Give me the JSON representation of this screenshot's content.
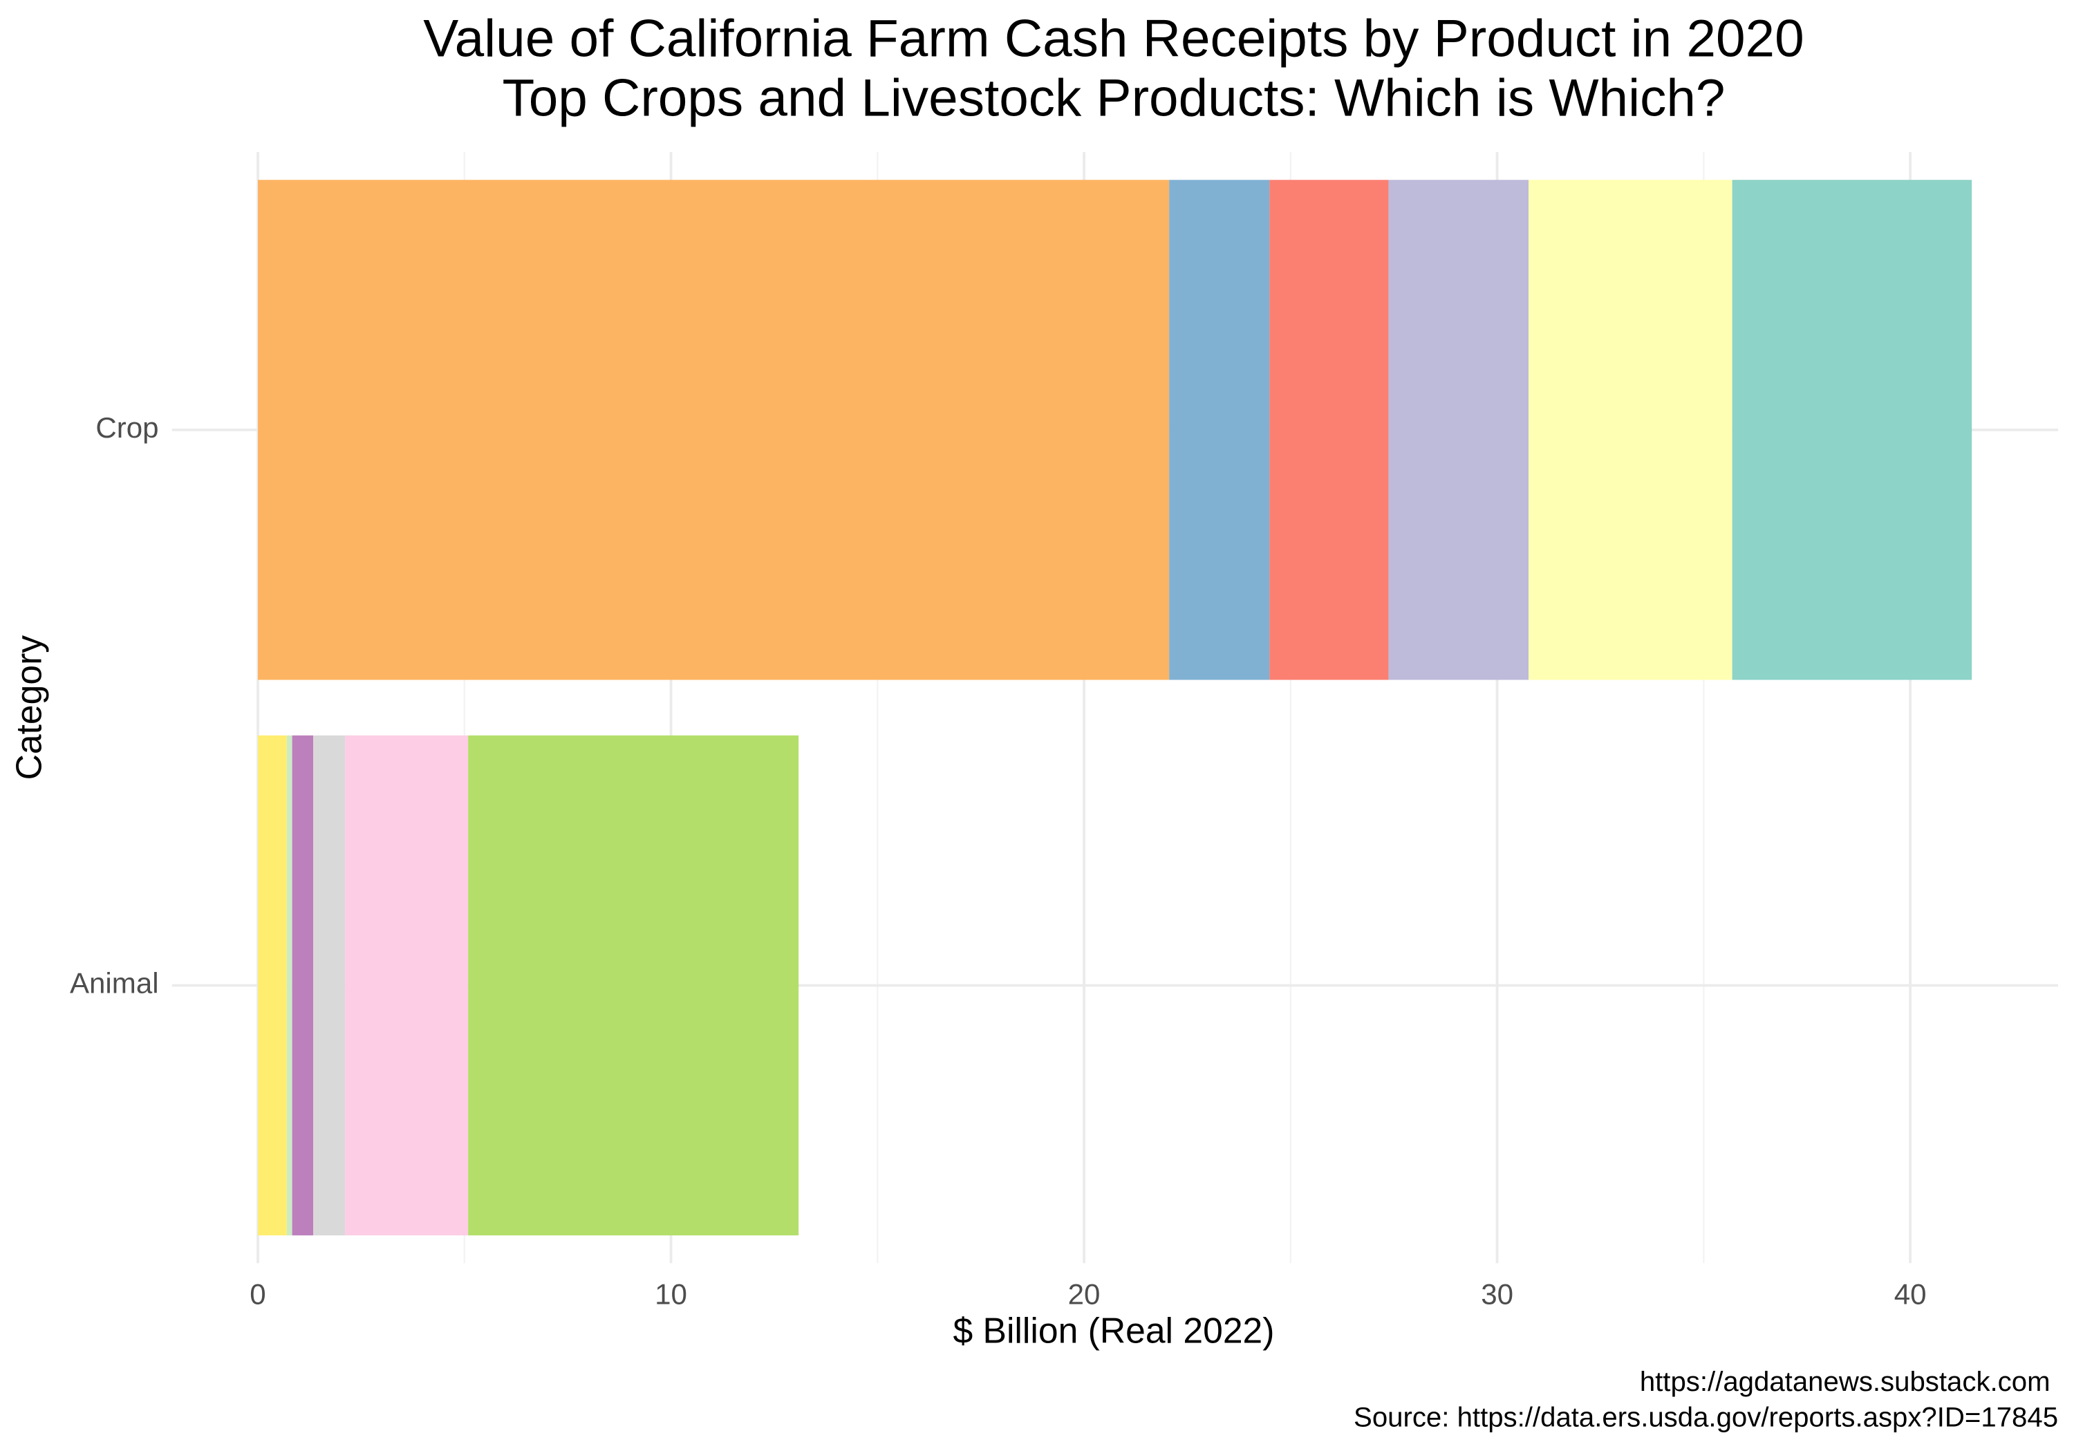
{
  "chart_data": {
    "type": "stacked_bar_horizontal",
    "title": "Value of California Farm Cash Receipts by Product in 2020",
    "subtitle": "Top Crops and Livestock Products: Which is Which?",
    "x_label": "$ Billion (Real 2022)",
    "y_label": "Category",
    "caption": [
      "https://agdatanews.substack.com",
      "Source: https://data.ers.usda.gov/reports.aspx?ID=17845"
    ],
    "categories": [
      "Crop",
      "Animal"
    ],
    "series": [
      {
        "color": "#FDB462",
        "values": [
          22.06,
          null
        ]
      },
      {
        "color": "#80B1D3",
        "values": [
          2.43,
          null
        ]
      },
      {
        "color": "#FB8072",
        "values": [
          2.88,
          null
        ]
      },
      {
        "color": "#BEBADA",
        "values": [
          3.39,
          null
        ]
      },
      {
        "color": "#FFFFB3",
        "values": [
          4.93,
          null
        ]
      },
      {
        "color": "#8DD3C7",
        "values": [
          5.8,
          null
        ]
      },
      {
        "color": "#FFED6F",
        "values": [
          null,
          0.7
        ]
      },
      {
        "color": "#CCEBC5",
        "values": [
          null,
          0.13
        ]
      },
      {
        "color": "#BC80BD",
        "values": [
          null,
          0.51
        ]
      },
      {
        "color": "#D9D9D9",
        "values": [
          null,
          0.77
        ]
      },
      {
        "color": "#FCCDE5",
        "values": [
          null,
          2.98
        ]
      },
      {
        "color": "#B3DE69",
        "values": [
          null,
          8.0
        ]
      }
    ],
    "xlim": [
      -2.08,
      43.58
    ],
    "xticks": [
      0,
      10,
      20,
      30,
      40
    ],
    "grid": true
  }
}
